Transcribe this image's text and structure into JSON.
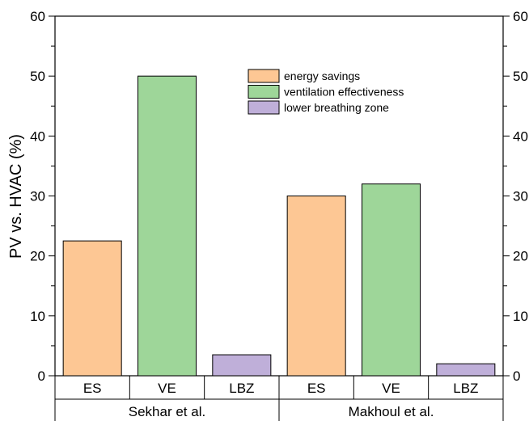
{
  "chart_data": {
    "type": "bar",
    "ylabel": "PV vs. HVAC (%)",
    "ylim": [
      0,
      60
    ],
    "yticks": [
      0,
      10,
      20,
      30,
      40,
      50,
      60
    ],
    "groups": [
      {
        "name": "Sekhar et al.",
        "categories": [
          "ES",
          "VE",
          "LBZ"
        ],
        "values": [
          22.5,
          50,
          3.5
        ]
      },
      {
        "name": "Makhoul et al.",
        "categories": [
          "ES",
          "VE",
          "LBZ"
        ],
        "values": [
          30,
          32,
          2
        ]
      }
    ],
    "series": [
      {
        "name": "energy savings",
        "color": "#fdc794"
      },
      {
        "name": "ventilation effectiveness",
        "color": "#9ed699"
      },
      {
        "name": "lower breathing zone",
        "color": "#bfafd9"
      }
    ],
    "legend_position": "top-right",
    "right_axis_mirrored": true
  }
}
